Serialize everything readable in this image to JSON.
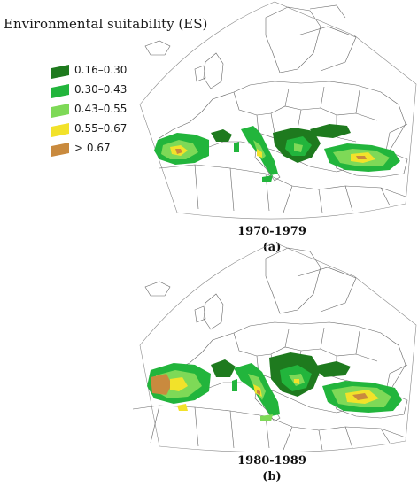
{
  "legend": {
    "title": "Environmental suitability (ES)",
    "items": [
      {
        "label": "0.16–0.30",
        "color": "#1e7a1e"
      },
      {
        "label": "0.30–0.43",
        "color": "#22b53c"
      },
      {
        "label": "0.43–0.55",
        "color": "#7ed957"
      },
      {
        "label": "0.55–0.67",
        "color": "#f2e22a"
      },
      {
        "label": "> 0.67",
        "color": "#c98a3e"
      }
    ]
  },
  "panels": [
    {
      "period": "1970-1979",
      "label": "(a)"
    },
    {
      "period": "1980-1989",
      "label": "(b)"
    }
  ]
}
